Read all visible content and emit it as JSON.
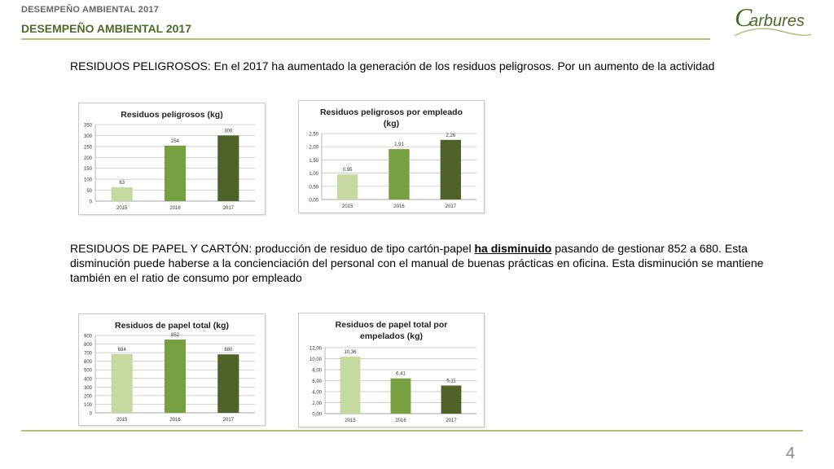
{
  "header": {
    "small_title": "DESEMPEÑO AMBIENTAL 2017",
    "title": "DESEMPEÑO AMBIENTAL 2017",
    "logo_text": "arbures",
    "logo_letter": "C",
    "rule_color": "#b6bd7d"
  },
  "section1": {
    "text": "RESIDUOS PELIGROSOS: En el 2017 ha aumentado la generación de los residuos peligrosos. Por un aumento de la actividad"
  },
  "section2": {
    "before": "RESIDUOS DE PAPEL Y CARTÓN: producción de residuo de tipo cartón-papel ",
    "emphasis": "ha disminuido",
    "after": " pasando de gestionar 852 a 680. Esta disminución puede haberse a la concienciación del personal con el manual de buenas prácticas en oficina. Esta disminución se mantiene también en el ratio de consumo por empleado"
  },
  "footer": {
    "page_number": "4"
  },
  "colors": [
    "#c6d9a0",
    "#77a041",
    "#4f6228"
  ],
  "chart_data": [
    {
      "type": "bar",
      "title": [
        "Residuos peligrosos (kg)"
      ],
      "categories": [
        "2015",
        "2016",
        "2017"
      ],
      "values": [
        63,
        254,
        300
      ],
      "labels": [
        "63",
        "254",
        "300"
      ],
      "yticks": [
        "0",
        "50",
        "100",
        "150",
        "200",
        "250",
        "300",
        "350"
      ],
      "ylim": [
        0,
        350
      ],
      "grid": true
    },
    {
      "type": "bar",
      "title": [
        "Residuos peligrosos por empleado",
        "(kg)"
      ],
      "categories": [
        "2015",
        "2016",
        "2017"
      ],
      "values": [
        0.95,
        1.91,
        2.26
      ],
      "labels": [
        "0,95",
        "1,91",
        "2,26"
      ],
      "yticks": [
        "0,00",
        "0,50",
        "1,00",
        "1,50",
        "2,00",
        "2,50"
      ],
      "ylim": [
        0,
        2.5
      ],
      "grid": true
    },
    {
      "type": "bar",
      "title": [
        "Residuos de papel total (kg)"
      ],
      "categories": [
        "2015",
        "2016",
        "2017"
      ],
      "values": [
        684,
        852,
        680
      ],
      "labels": [
        "684",
        "852",
        "680"
      ],
      "yticks": [
        "0",
        "100",
        "200",
        "300",
        "400",
        "500",
        "600",
        "700",
        "800",
        "900"
      ],
      "ylim": [
        0,
        900
      ],
      "grid": true
    },
    {
      "type": "bar",
      "title": [
        "Residuos de papel total por",
        "empelados (kg)"
      ],
      "categories": [
        "2015",
        "2016",
        "2017"
      ],
      "values": [
        10.36,
        6.41,
        5.11
      ],
      "labels": [
        "10,36",
        "6,41",
        "5,11"
      ],
      "yticks": [
        "0,00",
        "2,00",
        "4,00",
        "6,00",
        "8,00",
        "10,00",
        "12,00"
      ],
      "ylim": [
        0,
        12
      ],
      "grid": true
    }
  ]
}
